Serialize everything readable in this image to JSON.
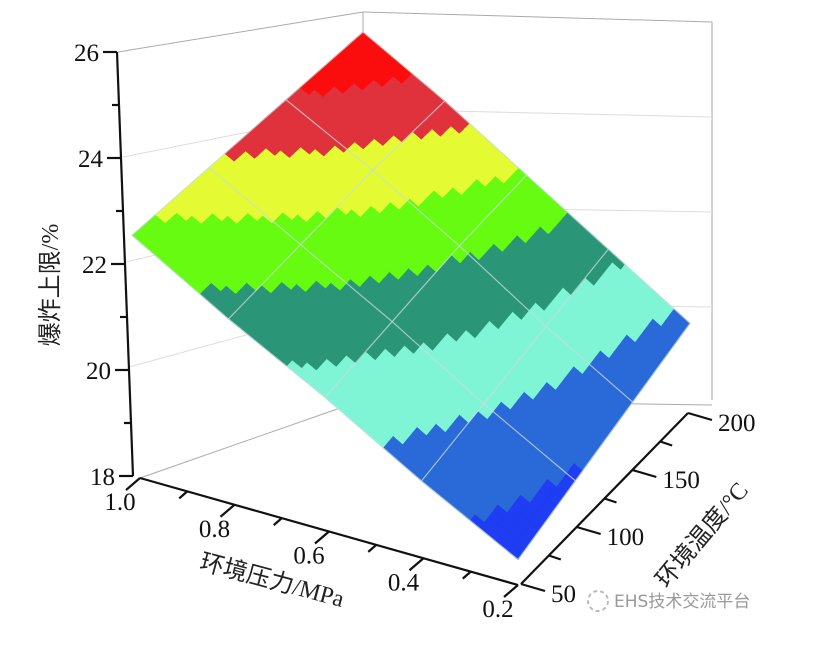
{
  "chart_data": {
    "type": "surface3d",
    "zlabel": "爆炸上限/%",
    "xlabel": "环境压力/MPa",
    "ylabel": "环境温度/°C",
    "x_ticks": [
      "1.0",
      "0.8",
      "0.6",
      "0.4",
      "0.2"
    ],
    "y_ticks": [
      "50",
      "100",
      "150",
      "200"
    ],
    "z_ticks": [
      "18",
      "20",
      "22",
      "24",
      "26"
    ],
    "xlim": [
      0.2,
      1.0
    ],
    "ylim": [
      50,
      200
    ],
    "zlim": [
      18,
      26
    ],
    "pressure": [
      0.2,
      0.4,
      0.6,
      0.8,
      1.0
    ],
    "temperature": [
      50,
      100,
      150,
      200
    ],
    "z": [
      [
        18.5,
        19.5,
        20.6,
        21.6,
        22.7
      ],
      [
        18.9,
        20.1,
        21.4,
        22.6,
        23.8
      ],
      [
        19.3,
        20.7,
        22.2,
        23.6,
        24.9
      ],
      [
        19.7,
        21.3,
        22.9,
        24.5,
        26.0
      ]
    ],
    "color_levels": [
      18,
      19,
      20,
      21,
      22,
      23,
      24,
      25,
      26
    ],
    "colors": [
      "#1f3df2",
      "#2a6ad8",
      "#7ff5d6",
      "#2a9677",
      "#66fb10",
      "#e4fb34",
      "#e0323c",
      "#fc0d0d"
    ],
    "grid": true
  },
  "watermark": "EHS技术交流平台"
}
